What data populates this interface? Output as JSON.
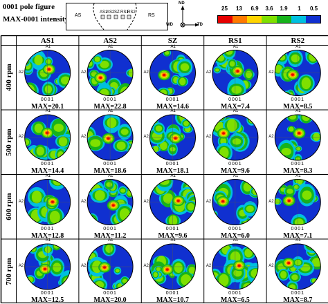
{
  "header": {
    "title_line1": "0001 pole figure",
    "title_line2": "MAX-0001 intensity"
  },
  "schematic": {
    "left_label": "AS",
    "right_label": "RS",
    "positions": [
      "AS1",
      "AS2",
      "SZ",
      "RS1",
      "RS2"
    ]
  },
  "axes": {
    "vertical": "ND",
    "left": "WD",
    "right": "TD"
  },
  "scale": {
    "labels": [
      "25",
      "13",
      "6.9",
      "3.6",
      "1.9",
      "1",
      "0.5"
    ],
    "colors": [
      "#e60000",
      "#ff7a00",
      "#ffd400",
      "#7fe000",
      "#16b31b",
      "#00c0e0",
      "#1030d0"
    ]
  },
  "columns": [
    "AS1",
    "AS2",
    "SZ",
    "RS1",
    "RS2"
  ],
  "rows": [
    {
      "label": "400 rpm",
      "max": [
        "MAX=20.1",
        "MAX=22.8",
        "MAX=14.6",
        "MAX=7.4",
        "MAX=8.5"
      ]
    },
    {
      "label": "500 rpm",
      "max": [
        "MAX=14.4",
        "MAX=18.6",
        "MAX=18.1",
        "MAX=9.6",
        "MAX=8.3"
      ]
    },
    {
      "label": "600 rpm",
      "max": [
        "MAX=12.8",
        "MAX=11.2",
        "MAX=9.6",
        "MAX=6.0",
        "MAX=7.1"
      ]
    },
    {
      "label": "700 rpm",
      "max": [
        "MAX=12.5",
        "MAX=20.0",
        "MAX=10.7",
        "MAX=6.5",
        "MAX=8.7"
      ]
    }
  ],
  "figure_labels": {
    "a1": "A1",
    "a2": "A2",
    "index": "0001"
  }
}
